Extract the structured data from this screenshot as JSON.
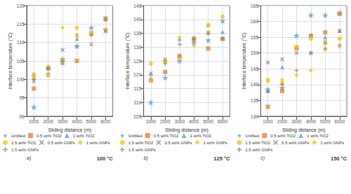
{
  "chart_data": [
    {
      "type": "scatter",
      "annotations": [
        "a)",
        "100 °C"
      ],
      "xlabel": "Sliding distance (m)",
      "ylabel": "Interface temperature (°C)",
      "xlim": [
        500,
        6500
      ],
      "ylim": [
        90,
        120
      ],
      "xticks": [
        1000,
        2000,
        3000,
        4000,
        5000,
        6000
      ],
      "yticks": [
        90,
        95,
        100,
        105,
        110,
        115,
        120
      ],
      "grid": true,
      "legend": "bottom",
      "x": [
        1000,
        2000,
        3000,
        4000,
        5000,
        6000
      ],
      "series": [
        {
          "name": "Unfilled",
          "color": "#5b9bd5",
          "marker": "star",
          "values": [
            92.5,
            101.5,
            105.5,
            109.0,
            114.0,
            113.5
          ]
        },
        {
          "name": "0.5 wt% TiO2",
          "color": "#ed7d31",
          "marker": "square",
          "values": [
            97.5,
            103.0,
            105.0,
            105.0,
            112.5,
            116.5
          ]
        },
        {
          "name": "1 wt% TiO2",
          "color": "#5b9bd5",
          "marker": "triangle",
          "values": [
            101.5,
            103.5,
            104.5,
            111.0,
            112.5,
            116.5
          ]
        },
        {
          "name": "1.5 wt% TiO2",
          "color": "#ffc000",
          "marker": "circle",
          "values": [
            100.5,
            101.0,
            105.0,
            114.0,
            112.5,
            113.5
          ]
        },
        {
          "name": "0.5 wt% GNPs",
          "color": "#7f7f7f",
          "marker": "x",
          "values": [
            99.5,
            103.0,
            108.0,
            112.0,
            109.5,
            113.0
          ]
        },
        {
          "name": "1 wt% GNPs",
          "color": "#ffc000",
          "marker": "diamond",
          "values": [
            101.5,
            103.5,
            114.0,
            111.5,
            112.5,
            116.0
          ]
        },
        {
          "name": "1.5 wt% GNPs",
          "color": "#7f7f7f",
          "marker": "plus",
          "values": [
            100.0,
            103.0,
            105.0,
            109.0,
            112.0,
            116.0
          ]
        }
      ]
    },
    {
      "type": "scatter",
      "annotations": [
        "b)",
        "125 °C"
      ],
      "xlabel": "Sliding distance (m)",
      "ylabel": "Interface temperature (°C)",
      "xlim": [
        500,
        6500
      ],
      "ylim": [
        105,
        145
      ],
      "xticks": [
        1000,
        2000,
        3000,
        4000,
        5000,
        6000
      ],
      "yticks": [
        105,
        110,
        115,
        120,
        125,
        130,
        135,
        140,
        145
      ],
      "grid": true,
      "legend": "bottom",
      "x": [
        1000,
        2000,
        3000,
        4000,
        5000,
        6000
      ],
      "series": [
        {
          "name": "Unfilled",
          "color": "#5b9bd5",
          "marker": "star",
          "values": [
            110.0,
            119.0,
            125.0,
            131.5,
            132.5,
            139.5
          ]
        },
        {
          "name": "0.5 wt% TiO2",
          "color": "#ed7d31",
          "marker": "square",
          "values": [
            118.0,
            121.0,
            126.5,
            133.0,
            129.5,
            133.0
          ]
        },
        {
          "name": "1 wt% TiO2",
          "color": "#5b9bd5",
          "marker": "triangle",
          "values": [
            118.5,
            125.0,
            133.0,
            133.5,
            138.0,
            135.5
          ]
        },
        {
          "name": "1.5 wt% TiO2",
          "color": "#ffc000",
          "marker": "circle",
          "values": [
            124.0,
            125.0,
            126.0,
            133.0,
            138.0,
            141.0
          ]
        },
        {
          "name": "0.5 wt% GNPs",
          "color": "#7f7f7f",
          "marker": "x",
          "values": [
            120.5,
            125.5,
            127.0,
            132.5,
            135.0,
            133.0
          ]
        },
        {
          "name": "1 wt% GNPs",
          "color": "#ffc000",
          "marker": "diamond",
          "values": [
            118.0,
            124.5,
            133.5,
            130.5,
            135.5,
            133.0
          ]
        },
        {
          "name": "1.5 wt% GNPs",
          "color": "#7f7f7f",
          "marker": "plus",
          "values": [
            120.0,
            124.0,
            131.0,
            133.0,
            135.0,
            133.0
          ]
        }
      ]
    },
    {
      "type": "scatter",
      "annotations": [
        "c)",
        "150 °C"
      ],
      "xlabel": "Sliding distance (m)",
      "ylabel": "Interface temperature (°C)",
      "xlim": [
        500,
        6500
      ],
      "ylim": [
        130,
        165
      ],
      "xticks": [
        1000,
        2000,
        3000,
        4000,
        5000,
        6000
      ],
      "yticks": [
        130,
        135,
        140,
        145,
        150,
        155,
        160,
        165
      ],
      "grid": true,
      "legend": "bottom",
      "x": [
        1000,
        2000,
        3000,
        4000,
        5000,
        6000
      ],
      "series": [
        {
          "name": "Unfilled",
          "color": "#5b9bd5",
          "marker": "star",
          "values": [
            138.5,
            139.0,
            155.5,
            162.0,
            162.0,
            162.5
          ]
        },
        {
          "name": "0.5 wt% TiO2",
          "color": "#ed7d31",
          "marker": "square",
          "values": [
            133.0,
            138.0,
            151.5,
            155.5,
            156.5,
            162.5
          ]
        },
        {
          "name": "1 wt% TiO2",
          "color": "#5b9bd5",
          "marker": "triangle",
          "values": [
            138.0,
            145.5,
            152.0,
            155.5,
            155.0,
            157.0
          ]
        },
        {
          "name": "1.5 wt% TiO2",
          "color": "#ffc000",
          "marker": "circle",
          "values": [
            141.5,
            140.5,
            152.0,
            154.5,
            153.0,
            154.5
          ]
        },
        {
          "name": "0.5 wt% GNPs",
          "color": "#7f7f7f",
          "marker": "x",
          "values": [
            147.0,
            148.0,
            150.0,
            150.0,
            153.5,
            157.0
          ]
        },
        {
          "name": "1 wt% GNPs",
          "color": "#ffc000",
          "marker": "diamond",
          "values": [
            141.0,
            141.5,
            143.0,
            144.5,
            151.0,
            152.0
          ]
        },
        {
          "name": "1.5 wt% GNPs",
          "color": "#7f7f7f",
          "marker": "plus",
          "values": [
            138.0,
            140.0,
            144.5,
            150.0,
            151.5,
            152.5
          ]
        }
      ]
    }
  ]
}
